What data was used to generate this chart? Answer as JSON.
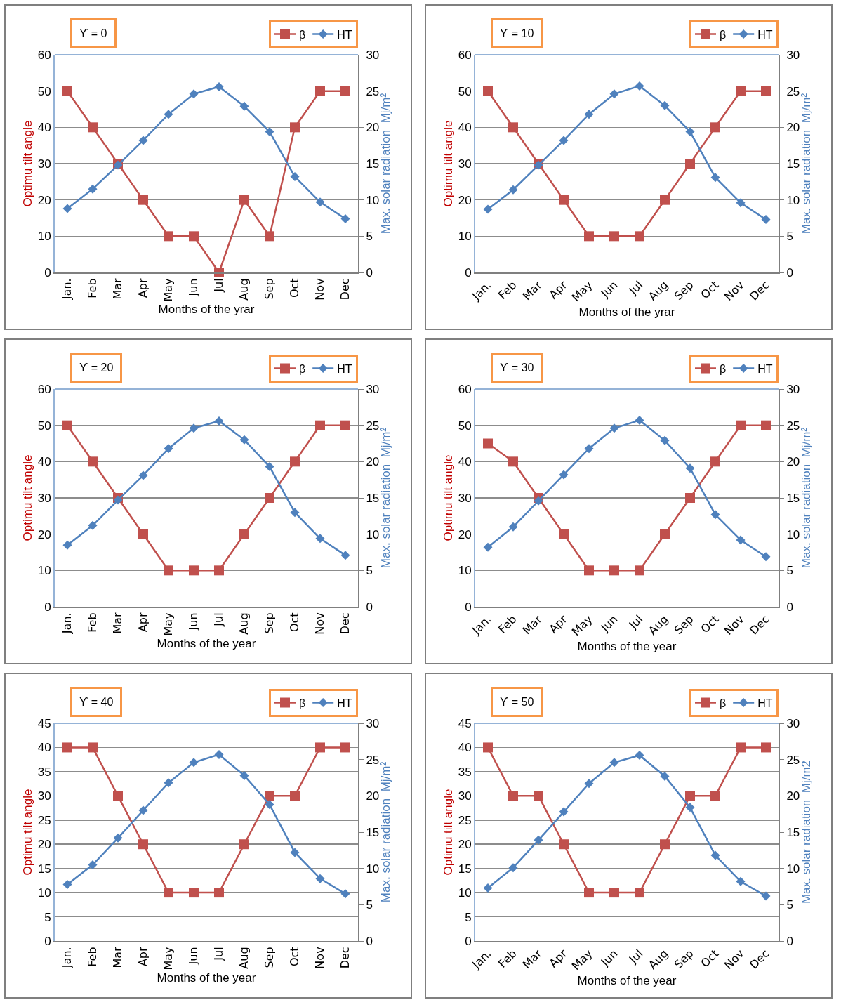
{
  "chart_data": [
    {
      "type": "line",
      "title": "ϒ = 0",
      "xlabel": "Months of the yrar",
      "ylabel": "Optimu tilt angle",
      "y2label": "Max. solar radiation  Mj/m²",
      "categories": [
        "Jan.",
        "Feb",
        "Mar",
        "Apr",
        "May",
        "Jun",
        "Jul",
        "Aug",
        "Sep",
        "Oct",
        "Nov",
        "Dec"
      ],
      "ylim": [
        0,
        60
      ],
      "yticks": [
        0,
        10,
        20,
        30,
        40,
        50,
        60
      ],
      "y2lim": [
        0,
        30
      ],
      "y2ticks": [
        0,
        5,
        10,
        15,
        20,
        25,
        30
      ],
      "grid": "y",
      "legend": "top right",
      "series": [
        {
          "name": "β",
          "color": "#c0504d",
          "marker": "square",
          "values": [
            50,
            40,
            30,
            20,
            10,
            10,
            0,
            20,
            10,
            40,
            50,
            50
          ]
        },
        {
          "name": "HT",
          "color": "#4f81bd",
          "marker": "diamond",
          "axis": "y2",
          "values": [
            8.8,
            11.5,
            14.8,
            18.2,
            21.8,
            24.6,
            25.6,
            22.9,
            19.4,
            13.2,
            9.7,
            7.4
          ]
        }
      ]
    },
    {
      "type": "line",
      "title": "ϒ = 10",
      "xlabel": "Months of the yrar",
      "ylabel": "Optimu tilt angle",
      "y2label": "Max. solar radiation  Mj/m²",
      "categories": [
        "Jan.",
        "Feb",
        "Mar",
        "Apr",
        "May",
        "Jun",
        "Jul",
        "Aug",
        "Sep",
        "Oct",
        "Nov",
        "Dec"
      ],
      "ylim": [
        0,
        60
      ],
      "yticks": [
        0,
        10,
        20,
        30,
        40,
        50,
        60
      ],
      "y2lim": [
        0,
        30
      ],
      "y2ticks": [
        0,
        5,
        10,
        15,
        20,
        25,
        30
      ],
      "grid": "y",
      "legend": "top right",
      "series": [
        {
          "name": "β",
          "color": "#c0504d",
          "marker": "square",
          "values": [
            50,
            40,
            30,
            20,
            10,
            10,
            10,
            20,
            30,
            40,
            50,
            50
          ]
        },
        {
          "name": "HT",
          "color": "#4f81bd",
          "marker": "diamond",
          "axis": "y2",
          "values": [
            8.7,
            11.4,
            14.8,
            18.2,
            21.8,
            24.6,
            25.7,
            23.0,
            19.4,
            13.1,
            9.6,
            7.3
          ]
        }
      ]
    },
    {
      "type": "line",
      "title": "ϒ = 20",
      "xlabel": "Months of the year",
      "ylabel": "Optimu tilt angle",
      "y2label": "Max. solar radiation  Mj/m²",
      "categories": [
        "Jan.",
        "Feb",
        "Mar",
        "Apr",
        "May",
        "Jun",
        "Jul",
        "Aug",
        "Sep",
        "Oct",
        "Nov",
        "Dec"
      ],
      "ylim": [
        0,
        60
      ],
      "yticks": [
        0,
        10,
        20,
        30,
        40,
        50,
        60
      ],
      "y2lim": [
        0,
        30
      ],
      "y2ticks": [
        0,
        5,
        10,
        15,
        20,
        25,
        30
      ],
      "grid": "y",
      "legend": "top right",
      "series": [
        {
          "name": "β",
          "color": "#c0504d",
          "marker": "square",
          "values": [
            50,
            40,
            30,
            20,
            10,
            10,
            10,
            20,
            30,
            40,
            50,
            50
          ]
        },
        {
          "name": "HT",
          "color": "#4f81bd",
          "marker": "diamond",
          "axis": "y2",
          "values": [
            8.5,
            11.2,
            14.7,
            18.1,
            21.8,
            24.6,
            25.6,
            23.0,
            19.3,
            13.0,
            9.4,
            7.1
          ]
        }
      ]
    },
    {
      "type": "line",
      "title": "ϒ = 30",
      "xlabel": "Months of the year",
      "ylabel": "Optimu tilt angle",
      "y2label": "Max. solar radiation  Mj/m²",
      "categories": [
        "Jan.",
        "Feb",
        "Mar",
        "Apr",
        "May",
        "Jun",
        "Jul",
        "Aug",
        "Sep",
        "Oct",
        "Nov",
        "Dec"
      ],
      "ylim": [
        0,
        60
      ],
      "yticks": [
        0,
        10,
        20,
        30,
        40,
        50,
        60
      ],
      "y2lim": [
        0,
        30
      ],
      "y2ticks": [
        0,
        5,
        10,
        15,
        20,
        25,
        30
      ],
      "grid": "y",
      "legend": "top right",
      "series": [
        {
          "name": "β",
          "color": "#c0504d",
          "marker": "square",
          "values": [
            45,
            40,
            30,
            20,
            10,
            10,
            10,
            20,
            30,
            40,
            50,
            50
          ]
        },
        {
          "name": "HT",
          "color": "#4f81bd",
          "marker": "diamond",
          "axis": "y2",
          "values": [
            8.2,
            11.0,
            14.6,
            18.2,
            21.8,
            24.6,
            25.7,
            22.9,
            19.1,
            12.7,
            9.2,
            6.9
          ]
        }
      ]
    },
    {
      "type": "line",
      "title": "ϒ = 40",
      "xlabel": "Months of the year",
      "ylabel": "Optimu tilt angle",
      "y2label": "Max. solar radiation  Mj/m²",
      "categories": [
        "Jan.",
        "Feb",
        "Mar",
        "Apr",
        "May",
        "Jun",
        "Jul",
        "Aug",
        "Sep",
        "Oct",
        "Nov",
        "Dec"
      ],
      "ylim": [
        0,
        45
      ],
      "yticks": [
        0,
        5,
        10,
        15,
        20,
        25,
        30,
        35,
        40,
        45
      ],
      "y2lim": [
        0,
        30
      ],
      "y2ticks": [
        0,
        5,
        10,
        15,
        20,
        25,
        30
      ],
      "grid": "y",
      "legend": "top right",
      "series": [
        {
          "name": "β",
          "color": "#c0504d",
          "marker": "square",
          "values": [
            40,
            40,
            30,
            20,
            10,
            10,
            10,
            20,
            30,
            30,
            40,
            40
          ]
        },
        {
          "name": "HT",
          "color": "#4f81bd",
          "marker": "diamond",
          "axis": "y2",
          "values": [
            7.8,
            10.5,
            14.2,
            18.0,
            21.8,
            24.6,
            25.7,
            22.8,
            18.8,
            12.2,
            8.6,
            6.5
          ]
        }
      ]
    },
    {
      "type": "line",
      "title": "ϒ = 50",
      "xlabel": "Months of the year",
      "ylabel": "Optimu tilt angle",
      "y2label": "Max. solar radiation  Mj/m2",
      "categories": [
        "Jan.",
        "Feb",
        "Mar",
        "Apr",
        "May",
        "Jun",
        "Jul",
        "Aug",
        "Sep",
        "Oct",
        "Nov",
        "Dec"
      ],
      "ylim": [
        0,
        45
      ],
      "yticks": [
        0,
        5,
        10,
        15,
        20,
        25,
        30,
        35,
        40,
        45
      ],
      "y2lim": [
        0,
        30
      ],
      "y2ticks": [
        0,
        5,
        10,
        15,
        20,
        25,
        30
      ],
      "grid": "y",
      "legend": "top right",
      "series": [
        {
          "name": "β",
          "color": "#c0504d",
          "marker": "square",
          "values": [
            40,
            30,
            30,
            20,
            10,
            10,
            10,
            20,
            30,
            30,
            40,
            40
          ]
        },
        {
          "name": "HT",
          "color": "#4f81bd",
          "marker": "diamond",
          "axis": "y2",
          "values": [
            7.3,
            10.1,
            13.9,
            17.8,
            21.7,
            24.6,
            25.6,
            22.7,
            18.4,
            11.8,
            8.2,
            6.2
          ]
        }
      ]
    }
  ]
}
